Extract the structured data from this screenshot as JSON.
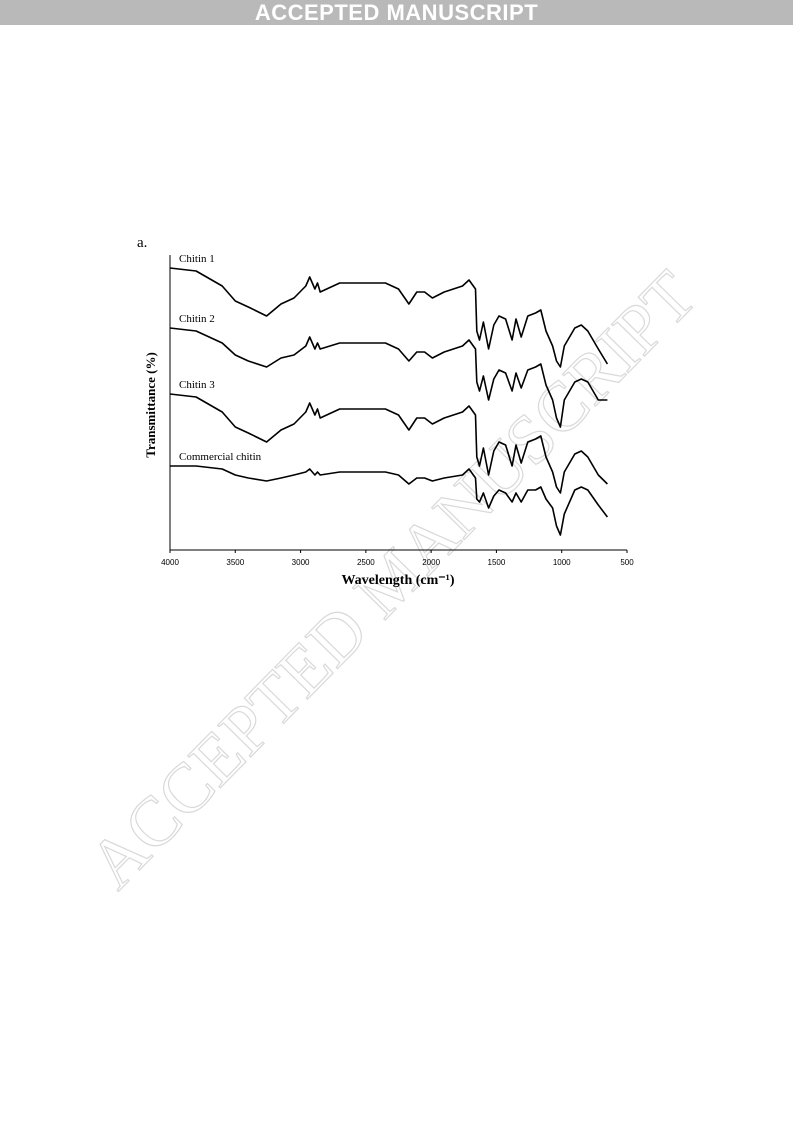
{
  "header": {
    "banner": "ACCEPTED MANUSCRIPT"
  },
  "watermark": "ACCEPTED MANUSCRIPT",
  "figure": {
    "panel_label": "a."
  },
  "chart_data": {
    "type": "line",
    "x_label": "Wavelength (cm⁻¹)",
    "y_label": "Transmittance (%)",
    "x": [
      4000,
      3800,
      3600,
      3500,
      3400,
      3260,
      3150,
      3050,
      2960,
      2930,
      2890,
      2870,
      2850,
      2700,
      2500,
      2350,
      2250,
      2170,
      2110,
      2050,
      1990,
      1900,
      1760,
      1710,
      1660,
      1650,
      1630,
      1600,
      1560,
      1520,
      1480,
      1430,
      1380,
      1350,
      1310,
      1260,
      1200,
      1160,
      1120,
      1070,
      1040,
      1010,
      980,
      900,
      850,
      800,
      720,
      650
    ],
    "xlim": [
      4000,
      500
    ],
    "xticks": [
      4000,
      3500,
      3000,
      2500,
      2000,
      1500,
      1000,
      500
    ],
    "ylim": [
      0,
      100
    ],
    "grid": false,
    "series": [
      {
        "name": "Chitin 1",
        "color": "#000000",
        "values": [
          94,
          93,
          88,
          83,
          81,
          78,
          82,
          84,
          88,
          91,
          87,
          89,
          86,
          89,
          89,
          89,
          87,
          82,
          86,
          86,
          84,
          86,
          88,
          90,
          87,
          73,
          70,
          76,
          67,
          75,
          78,
          77,
          70,
          77,
          71,
          78,
          79,
          80,
          73,
          68,
          63,
          61,
          68,
          74,
          75,
          73,
          67,
          62
        ]
      },
      {
        "name": "Chitin 2",
        "color": "#000000",
        "values": [
          74,
          73,
          69,
          65,
          63,
          61,
          64,
          65,
          68,
          71,
          67,
          69,
          67,
          69,
          69,
          69,
          67,
          63,
          66,
          66,
          64,
          66,
          68,
          70,
          67,
          56,
          53,
          58,
          50,
          57,
          60,
          59,
          53,
          59,
          54,
          60,
          61,
          62,
          55,
          50,
          44,
          41,
          50,
          56,
          57,
          56,
          50,
          50
        ]
      },
      {
        "name": "Chitin 3",
        "color": "#000000",
        "values": [
          52,
          51,
          46,
          41,
          39,
          36,
          40,
          42,
          46,
          49,
          45,
          47,
          44,
          47,
          47,
          47,
          45,
          40,
          44,
          44,
          42,
          44,
          46,
          48,
          45,
          31,
          28,
          34,
          25,
          33,
          36,
          35,
          28,
          35,
          29,
          36,
          37,
          38,
          31,
          26,
          21,
          19,
          26,
          32,
          33,
          31,
          25,
          22
        ]
      },
      {
        "name": "Commercial chitin",
        "color": "#000000",
        "values": [
          28,
          28,
          27,
          25,
          24,
          23,
          24,
          25,
          26,
          27,
          25,
          26,
          25,
          26,
          26,
          26,
          25,
          22,
          24,
          24,
          23,
          24,
          25,
          27,
          24,
          17,
          16,
          19,
          14,
          18,
          20,
          19,
          16,
          19,
          16,
          20,
          20,
          21,
          17,
          14,
          8,
          5,
          12,
          20,
          21,
          20,
          15,
          11
        ]
      }
    ]
  }
}
